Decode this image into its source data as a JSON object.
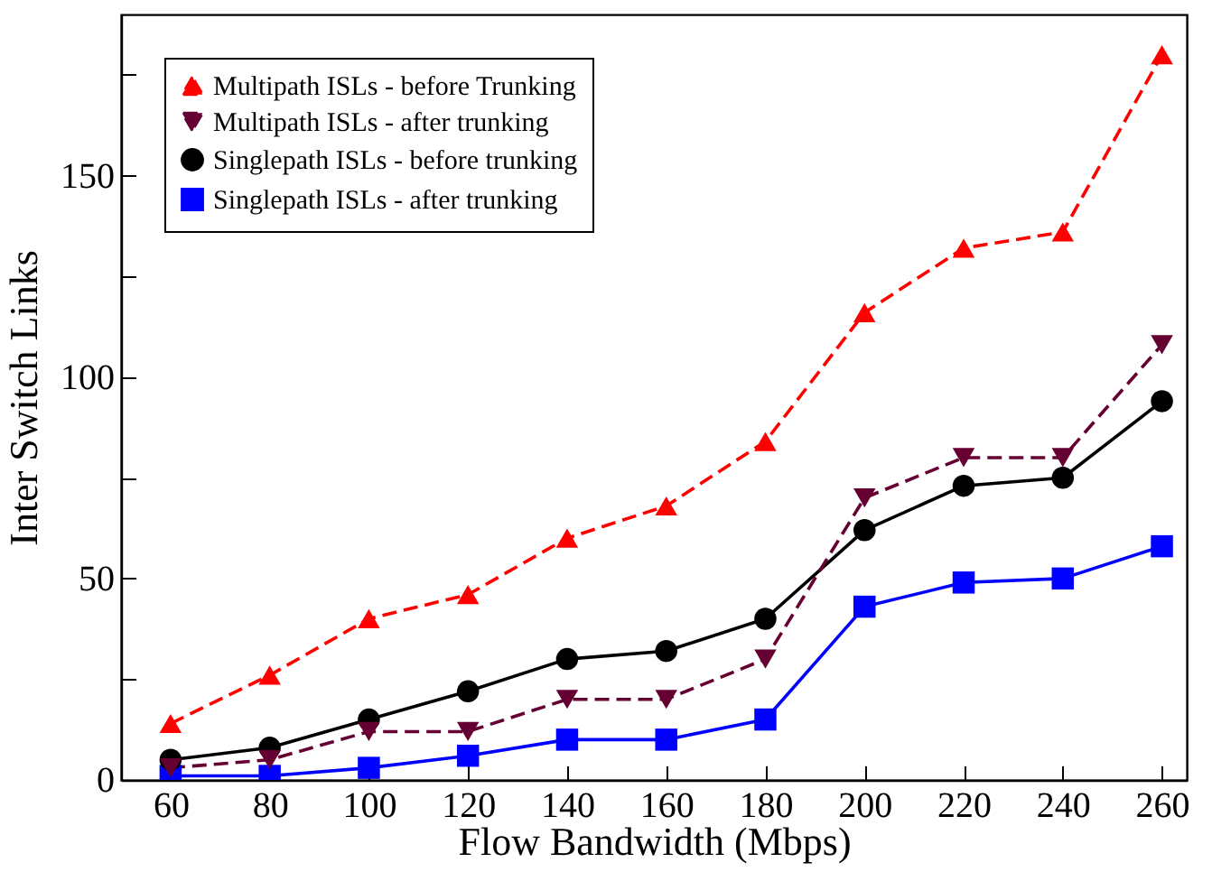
{
  "chart_data": {
    "type": "line",
    "xlabel": "Flow Bandwidth (Mbps)",
    "ylabel": "Inter Switch Links",
    "x": [
      60,
      80,
      100,
      120,
      140,
      160,
      180,
      200,
      220,
      240,
      260
    ],
    "xlim": [
      50,
      265
    ],
    "xticks": [
      60,
      80,
      100,
      120,
      140,
      160,
      180,
      200,
      220,
      240,
      260
    ],
    "ylim": [
      0,
      190
    ],
    "yticks": [
      0,
      {
        "value": 25,
        "label": null
      },
      50,
      {
        "value": 75,
        "label": null
      },
      100,
      {
        "value": 125,
        "label": null
      },
      150,
      {
        "value": 175,
        "label": null
      }
    ],
    "grid": false,
    "legend": "top left",
    "series": [
      {
        "name": "Multipath ISLs - before Trunking",
        "color": "#ff0000",
        "marker": "triangle",
        "line_style": "dashed",
        "values": [
          14,
          26,
          40,
          46,
          60,
          68,
          84,
          116,
          132,
          136,
          180
        ]
      },
      {
        "name": "Multipath ISLs - after trunking",
        "color": "#660033",
        "marker": "triangle-down",
        "line_style": "dashed",
        "values": [
          3,
          5,
          12,
          12,
          20,
          20,
          30,
          70,
          80,
          80,
          108
        ]
      },
      {
        "name": "Singlepath ISLs - before trunking",
        "color": "#000000",
        "marker": "circle",
        "line_style": "solid",
        "values": [
          5,
          8,
          15,
          22,
          30,
          32,
          40,
          62,
          73,
          75,
          94
        ]
      },
      {
        "name": "Singlepath ISLs - after trunking",
        "color": "#0000ff",
        "marker": "square",
        "line_style": "solid",
        "values": [
          1,
          1,
          3,
          6,
          10,
          10,
          15,
          43,
          49,
          50,
          58
        ]
      }
    ]
  }
}
